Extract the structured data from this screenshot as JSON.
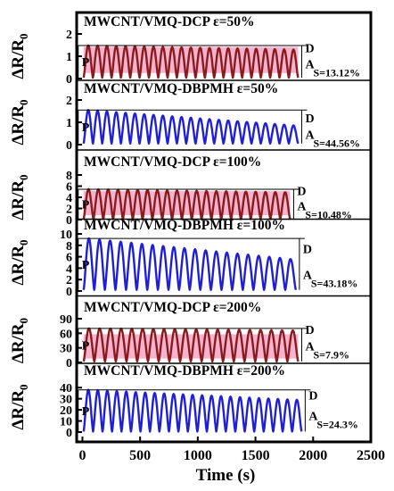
{
  "chart_data": {
    "type": "line",
    "xlabel": "Time (s)",
    "xlim": [
      -50,
      2500
    ],
    "x_ticks": [
      "0",
      "500",
      "1000",
      "1500",
      "2000",
      "2500"
    ],
    "x_tick_values": [
      0,
      500,
      1000,
      1500,
      2000,
      2500
    ],
    "ylabel_main": "ΔR/R",
    "ylabel_sub": "0",
    "annotation_letters": {
      "P": "P",
      "D": "D",
      "A": "A"
    },
    "colors": {
      "dcp": "#8b1a1a",
      "dbpmh": "#1f1fd6",
      "band": "#f4a6c8"
    },
    "panels": [
      {
        "title": "MWCNT/VMQ-DCP   ε=50%",
        "material": "DCP",
        "strain": "50%",
        "ylim": [
          0,
          2
        ],
        "y_ticks": [
          "0",
          "1",
          "2"
        ],
        "y_tick_values": [
          0,
          1,
          2
        ],
        "cycles": 23,
        "t_start": 10,
        "t_end": 1870,
        "peak_first": 1.48,
        "peak_last": 1.3,
        "valley": 0.04,
        "band": [
          0.25,
          1.42
        ],
        "s_label": "S=13.12%"
      },
      {
        "title": "MWCNT/VMQ-DBPMH  ε=50%",
        "material": "DBPMH",
        "strain": "50%",
        "ylim": [
          0,
          2
        ],
        "y_ticks": [
          "0",
          "1",
          "2"
        ],
        "y_tick_values": [
          0,
          1,
          2
        ],
        "cycles": 23,
        "t_start": 10,
        "t_end": 1870,
        "peak_first": 1.55,
        "peak_last": 0.86,
        "valley": 0.05,
        "band": null,
        "s_label": "S=44.56%"
      },
      {
        "title": "MWCNT/VMQ-DCP    ε=100%",
        "material": "DCP",
        "strain": "100%",
        "ylim": [
          0,
          8
        ],
        "y_ticks": [
          "0",
          "2",
          "4",
          "6",
          "8"
        ],
        "y_tick_values": [
          0,
          2,
          4,
          6,
          8
        ],
        "cycles": 21,
        "t_start": 10,
        "t_end": 1800,
        "peak_first": 5.45,
        "peak_last": 4.9,
        "valley": 0.1,
        "band": [
          0.8,
          5.1
        ],
        "s_label": "S=10.48%"
      },
      {
        "title": "MWCNT/VMQ-DBPMH    ε=100%",
        "material": "DBPMH",
        "strain": "100%",
        "ylim": [
          0,
          10
        ],
        "y_ticks": [
          "0",
          "2",
          "4",
          "6",
          "8",
          "10"
        ],
        "y_tick_values": [
          0,
          2,
          4,
          6,
          8,
          10
        ],
        "cycles": 20,
        "t_start": 10,
        "t_end": 1850,
        "peak_first": 9.2,
        "peak_last": 5.6,
        "valley": 0.2,
        "band": null,
        "s_label": "S=43.18%"
      },
      {
        "title": "MWCNT/VMQ-DCP     ε=200%",
        "material": "DCP",
        "strain": "200%",
        "ylim": [
          0,
          90
        ],
        "y_ticks": [
          "0",
          "30",
          "60",
          "90"
        ],
        "y_tick_values": [
          0,
          30,
          60,
          90
        ],
        "cycles": 20,
        "t_start": 10,
        "t_end": 1870,
        "peak_first": 70,
        "peak_last": 66,
        "valley": 2,
        "band": [
          8,
          58
        ],
        "s_label": "S=7.9%"
      },
      {
        "title": "MWCNT/VMQ-DBPMH  ε=200%",
        "material": "DBPMH",
        "strain": "200%",
        "ylim": [
          0,
          45
        ],
        "y_ticks": [
          "0",
          "10",
          "20",
          "30",
          "40"
        ],
        "y_tick_values": [
          0,
          10,
          20,
          30,
          40
        ],
        "cycles": 23,
        "t_start": 10,
        "t_end": 1900,
        "peak_first": 38,
        "peak_last": 29,
        "valley": 0.5,
        "band": null,
        "s_label": "S=24.3%"
      }
    ]
  }
}
